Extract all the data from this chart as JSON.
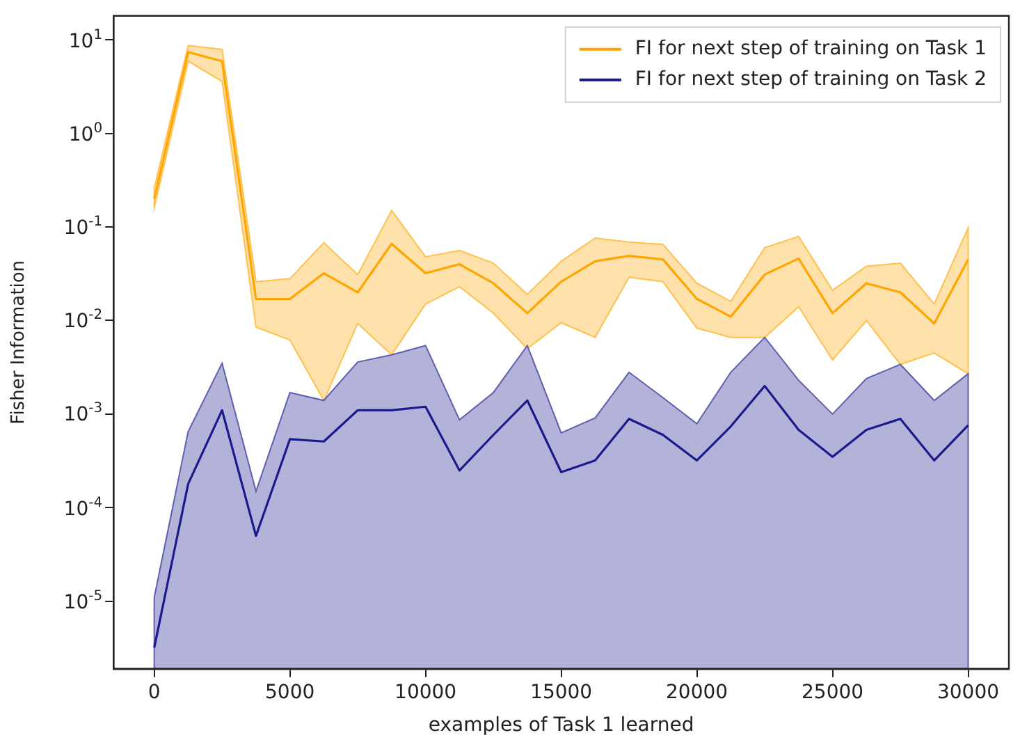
{
  "chart_data": {
    "type": "line",
    "xlabel": "examples of Task 1 learned",
    "ylabel": "Fisher Information",
    "log": "y",
    "grid": false,
    "legend": "top right",
    "marker": "none",
    "line_style": "solid",
    "x": [
      0,
      1250,
      2500,
      3750,
      5000,
      6250,
      7500,
      8750,
      10000,
      11250,
      12500,
      13750,
      15000,
      16250,
      17500,
      18750,
      20000,
      21250,
      22500,
      23750,
      25000,
      26250,
      27500,
      28750,
      30000
    ],
    "xlim": [
      -1500,
      31500
    ],
    "xticks": [
      0,
      5000,
      10000,
      15000,
      20000,
      25000,
      30000
    ],
    "ylim": [
      1.9e-06,
      18
    ],
    "yticks": [
      {
        "value": 1e-05,
        "label": "10$^{-5}$"
      },
      {
        "value": 0.0001,
        "label": "10$^{-4}$"
      },
      {
        "value": 0.001,
        "label": "10$^{-3}$"
      },
      {
        "value": 0.01,
        "label": "10$^{-2}$"
      },
      {
        "value": 0.1,
        "label": "10$^{-1}$"
      },
      {
        "value": 1,
        "label": "10$^{0}$"
      },
      {
        "value": 10,
        "label": "10$^{1}$"
      }
    ],
    "series": [
      {
        "name": "FI for next step of training on Task 1",
        "color": "#ffa500",
        "values": [
          0.2,
          7.4,
          5.9,
          0.017,
          0.017,
          0.032,
          0.02,
          0.066,
          0.032,
          0.04,
          0.025,
          0.012,
          0.026,
          0.043,
          0.049,
          0.045,
          0.017,
          0.011,
          0.031,
          0.046,
          0.012,
          0.025,
          0.02,
          0.0093,
          0.045
        ],
        "upper": [
          0.26,
          8.7,
          7.9,
          0.026,
          0.028,
          0.068,
          0.031,
          0.15,
          0.048,
          0.056,
          0.041,
          0.019,
          0.043,
          0.076,
          0.069,
          0.065,
          0.025,
          0.016,
          0.06,
          0.079,
          0.021,
          0.038,
          0.041,
          0.015,
          0.098
        ],
        "lower": [
          0.16,
          5.9,
          3.6,
          0.0085,
          0.0062,
          0.0014,
          0.0093,
          0.0043,
          0.015,
          0.023,
          0.012,
          0.005,
          0.0095,
          0.0066,
          0.029,
          0.026,
          0.0083,
          0.0066,
          0.0066,
          0.014,
          0.0038,
          0.01,
          0.0034,
          0.0045,
          0.0027
        ]
      },
      {
        "name": "FI for next step of training on Task 2",
        "color": "#1a1a8c",
        "values": [
          3.2e-06,
          0.00018,
          0.0011,
          5e-05,
          0.00054,
          0.00051,
          0.0011,
          0.0011,
          0.0012,
          0.00025,
          0.0006,
          0.0014,
          0.00024,
          0.00032,
          0.00089,
          0.0006,
          0.00032,
          0.00074,
          0.002,
          0.00068,
          0.00035,
          0.00068,
          0.00089,
          0.00032,
          0.00076
        ],
        "upper": [
          1.1e-05,
          0.00065,
          0.0035,
          0.00015,
          0.0017,
          0.0014,
          0.0036,
          0.0043,
          0.0054,
          0.00087,
          0.0017,
          0.0054,
          0.00063,
          0.00091,
          0.0028,
          0.0015,
          0.00079,
          0.0028,
          0.0066,
          0.0023,
          0.001,
          0.0024,
          0.0034,
          0.0014,
          0.0027
        ],
        "lower": [
          1.9e-06,
          1.9e-06,
          1.9e-06,
          1.9e-06,
          1.9e-06,
          1.9e-06,
          1.9e-06,
          1.9e-06,
          1.9e-06,
          1.9e-06,
          1.9e-06,
          1.9e-06,
          1.9e-06,
          1.9e-06,
          1.9e-06,
          1.9e-06,
          1.9e-06,
          1.9e-06,
          1.9e-06,
          1.9e-06,
          1.9e-06,
          1.9e-06,
          1.9e-06,
          1.9e-06,
          1.9e-06
        ]
      }
    ]
  }
}
